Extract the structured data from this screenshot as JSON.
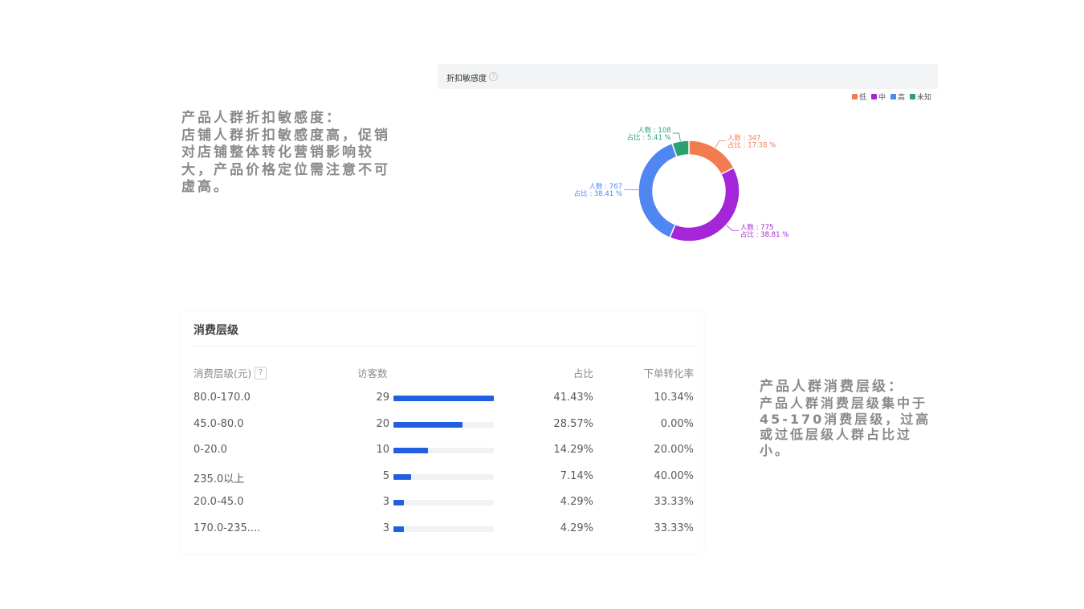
{
  "note_left": {
    "title": "产品人群折扣敏感度：",
    "body": "店铺人群折扣敏感度高，促销对店铺整体转化营销影响较大，产品价格定位需注意不可虚高。"
  },
  "note_right": {
    "title": "产品人群消费层级：",
    "body": "产品人群消费层级集中于45-170消费层级，过高或过低层级人群占比过小。"
  },
  "chart_data": [
    {
      "type": "pie",
      "title": "折扣敏感度",
      "help_icon": "question-circle-icon",
      "legend_position": "top-right",
      "slices": [
        {
          "name": "低",
          "color": "#f27b50",
          "count": 347,
          "count_label": "人数 : 347",
          "share": 17.38,
          "share_label": "占比 : 17.38 %"
        },
        {
          "name": "中",
          "color": "#a526d8",
          "count": 775,
          "count_label": "人数 : 775",
          "share": 38.81,
          "share_label": "占比 : 38.81 %"
        },
        {
          "name": "高",
          "color": "#4f86f2",
          "count": 767,
          "count_label": "人数 : 767",
          "share": 38.41,
          "share_label": "占比 : 38.41 %"
        },
        {
          "name": "未知",
          "color": "#2ba173",
          "count": 108,
          "count_label": "人数 : 108",
          "share": 5.41,
          "share_label": "占比 : 5.41 %"
        }
      ]
    },
    {
      "type": "table",
      "title": "消费层级",
      "columns": [
        "消费层级(元)",
        "访客数",
        "占比",
        "下单转化率"
      ],
      "help_label": "?",
      "bar_color": "#1f5fe0",
      "rows": [
        {
          "level": "80.0-170.0",
          "visitors": 29,
          "share": "41.43%",
          "conversion": "10.34%"
        },
        {
          "level": "45.0-80.0",
          "visitors": 20,
          "share": "28.57%",
          "conversion": "0.00%"
        },
        {
          "level": "0-20.0",
          "visitors": 10,
          "share": "14.29%",
          "conversion": "20.00%"
        },
        {
          "level": "235.0以上",
          "visitors": 5,
          "share": "7.14%",
          "conversion": "40.00%"
        },
        {
          "level": "20.0-45.0",
          "visitors": 3,
          "share": "4.29%",
          "conversion": "33.33%"
        },
        {
          "level": "170.0-235....",
          "visitors": 3,
          "share": "4.29%",
          "conversion": "33.33%"
        }
      ]
    }
  ]
}
